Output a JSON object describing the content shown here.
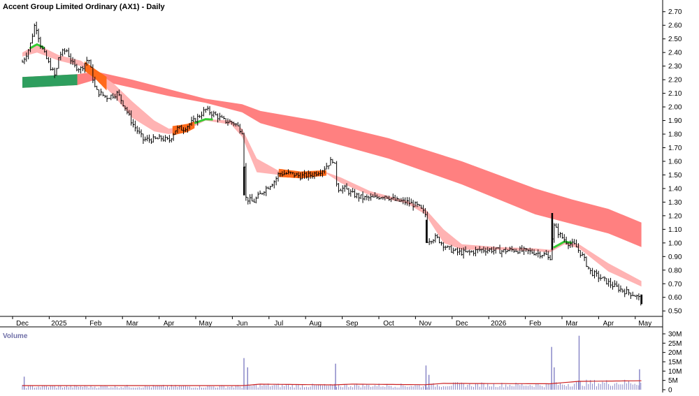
{
  "chart_data": [
    {
      "type": "line",
      "title": "Accent Group Limited Ordinary (AX1) - Daily",
      "x_ticks": [
        "Dec",
        "2025",
        "Feb",
        "Mar",
        "Apr",
        "May",
        "Jun",
        "Jul",
        "Aug",
        "Sep",
        "Oct",
        "Nov",
        "Dec",
        "2026",
        "Feb",
        "Mar",
        "Apr",
        "May"
      ],
      "y_ticks": [
        "2.70",
        "2.60",
        "2.50",
        "2.40",
        "2.30",
        "2.20",
        "2.10",
        "2.00",
        "1.90",
        "1.80",
        "1.70",
        "1.60",
        "1.50",
        "1.40",
        "1.30",
        "1.20",
        "1.10",
        "1.00",
        "0.90",
        "0.80",
        "0.70",
        "0.60",
        "0.50"
      ],
      "ylim": [
        0.46,
        2.75
      ],
      "grid": false,
      "legend": "none",
      "colors": {
        "long_band": "#ff8080",
        "short_band_down": "#ffb3b3",
        "short_band_up_fill": "#ff6a1a",
        "short_band_green": "#33cc33",
        "long_band_green": "#2e9e5e",
        "price_bar": "#000000"
      },
      "price_series": [
        {
          "x": 0.0,
          "close": 2.33
        },
        {
          "x": 0.2,
          "close": 2.44
        },
        {
          "x": 0.35,
          "close": 2.62
        },
        {
          "x": 0.5,
          "close": 2.45
        },
        {
          "x": 0.7,
          "close": 2.33
        },
        {
          "x": 0.9,
          "close": 2.22
        },
        {
          "x": 1.0,
          "close": 2.38
        },
        {
          "x": 1.2,
          "close": 2.42
        },
        {
          "x": 1.4,
          "close": 2.3
        },
        {
          "x": 1.6,
          "close": 2.28
        },
        {
          "x": 1.8,
          "close": 2.36
        },
        {
          "x": 2.0,
          "close": 2.12
        },
        {
          "x": 2.3,
          "close": 2.07
        },
        {
          "x": 2.6,
          "close": 2.1
        },
        {
          "x": 2.8,
          "close": 2.0
        },
        {
          "x": 3.0,
          "close": 1.88
        },
        {
          "x": 3.3,
          "close": 1.76
        },
        {
          "x": 3.6,
          "close": 1.76
        },
        {
          "x": 3.8,
          "close": 1.77
        },
        {
          "x": 4.0,
          "close": 1.75
        },
        {
          "x": 4.2,
          "close": 1.84
        },
        {
          "x": 4.4,
          "close": 1.84
        },
        {
          "x": 4.7,
          "close": 1.9
        },
        {
          "x": 5.0,
          "close": 1.98
        },
        {
          "x": 5.2,
          "close": 1.95
        },
        {
          "x": 5.5,
          "close": 1.9
        },
        {
          "x": 5.8,
          "close": 1.88
        },
        {
          "x": 6.0,
          "close": 1.82
        },
        {
          "x": 6.1,
          "close": 1.33
        },
        {
          "x": 6.3,
          "close": 1.3
        },
        {
          "x": 6.6,
          "close": 1.39
        },
        {
          "x": 6.9,
          "close": 1.46
        },
        {
          "x": 7.0,
          "close": 1.51
        },
        {
          "x": 7.3,
          "close": 1.51
        },
        {
          "x": 7.6,
          "close": 1.49
        },
        {
          "x": 7.9,
          "close": 1.5
        },
        {
          "x": 8.2,
          "close": 1.54
        },
        {
          "x": 8.5,
          "close": 1.62
        },
        {
          "x": 8.6,
          "close": 1.4
        },
        {
          "x": 8.8,
          "close": 1.4
        },
        {
          "x": 9.0,
          "close": 1.36
        },
        {
          "x": 9.3,
          "close": 1.33
        },
        {
          "x": 9.6,
          "close": 1.33
        },
        {
          "x": 9.9,
          "close": 1.35
        },
        {
          "x": 10.2,
          "close": 1.31
        },
        {
          "x": 10.5,
          "close": 1.3
        },
        {
          "x": 10.8,
          "close": 1.27
        },
        {
          "x": 11.0,
          "close": 1.21
        },
        {
          "x": 11.05,
          "close": 1.02
        },
        {
          "x": 11.3,
          "close": 1.04
        },
        {
          "x": 11.6,
          "close": 0.96
        },
        {
          "x": 11.9,
          "close": 0.93
        },
        {
          "x": 12.2,
          "close": 0.93
        },
        {
          "x": 12.5,
          "close": 0.95
        },
        {
          "x": 12.8,
          "close": 0.95
        },
        {
          "x": 13.1,
          "close": 0.94
        },
        {
          "x": 13.4,
          "close": 0.95
        },
        {
          "x": 13.7,
          "close": 0.94
        },
        {
          "x": 14.0,
          "close": 0.93
        },
        {
          "x": 14.3,
          "close": 0.91
        },
        {
          "x": 14.4,
          "close": 0.87
        },
        {
          "x": 14.5,
          "close": 1.13
        },
        {
          "x": 14.7,
          "close": 1.05
        },
        {
          "x": 14.9,
          "close": 1.0
        },
        {
          "x": 15.1,
          "close": 0.98
        },
        {
          "x": 15.3,
          "close": 0.9
        },
        {
          "x": 15.5,
          "close": 0.79
        },
        {
          "x": 15.8,
          "close": 0.74
        },
        {
          "x": 16.1,
          "close": 0.69
        },
        {
          "x": 16.4,
          "close": 0.65
        },
        {
          "x": 16.7,
          "close": 0.62
        },
        {
          "x": 16.9,
          "close": 0.58
        }
      ],
      "long_band": [
        {
          "x": 0.0,
          "upper": 2.22,
          "lower": 2.14
        },
        {
          "x": 1.5,
          "upper": 2.24,
          "lower": 2.16
        },
        {
          "x": 2.0,
          "upper": 2.26,
          "lower": 2.2
        },
        {
          "x": 3.0,
          "upper": 2.2,
          "lower": 2.14
        },
        {
          "x": 4.0,
          "upper": 2.13,
          "lower": 2.08
        },
        {
          "x": 5.0,
          "upper": 2.06,
          "lower": 2.03
        },
        {
          "x": 6.0,
          "upper": 2.02,
          "lower": 1.96
        },
        {
          "x": 6.5,
          "upper": 1.97,
          "lower": 1.88
        },
        {
          "x": 8.0,
          "upper": 1.9,
          "lower": 1.77
        },
        {
          "x": 10.0,
          "upper": 1.77,
          "lower": 1.62
        },
        {
          "x": 12.0,
          "upper": 1.6,
          "lower": 1.43
        },
        {
          "x": 14.0,
          "upper": 1.4,
          "lower": 1.21
        },
        {
          "x": 15.0,
          "upper": 1.32,
          "lower": 1.14
        },
        {
          "x": 16.0,
          "upper": 1.25,
          "lower": 1.07
        },
        {
          "x": 16.9,
          "upper": 1.15,
          "lower": 0.97
        }
      ],
      "short_band": [
        {
          "x": 0.0,
          "upper": 2.4,
          "lower": 2.37
        },
        {
          "x": 0.4,
          "upper": 2.46,
          "lower": 2.4
        },
        {
          "x": 1.0,
          "upper": 2.38,
          "lower": 2.34
        },
        {
          "x": 1.6,
          "upper": 2.34,
          "lower": 2.3
        },
        {
          "x": 2.0,
          "upper": 2.26,
          "lower": 2.22
        },
        {
          "x": 2.5,
          "upper": 2.17,
          "lower": 2.08
        },
        {
          "x": 3.0,
          "upper": 2.04,
          "lower": 1.92
        },
        {
          "x": 3.6,
          "upper": 1.9,
          "lower": 1.82
        },
        {
          "x": 4.0,
          "upper": 1.84,
          "lower": 1.8
        },
        {
          "x": 4.5,
          "upper": 1.86,
          "lower": 1.83
        },
        {
          "x": 5.0,
          "upper": 1.91,
          "lower": 1.9
        },
        {
          "x": 5.7,
          "upper": 1.9,
          "lower": 1.87
        },
        {
          "x": 6.0,
          "upper": 1.84,
          "lower": 1.78
        },
        {
          "x": 6.4,
          "upper": 1.62,
          "lower": 1.52
        },
        {
          "x": 7.0,
          "upper": 1.53,
          "lower": 1.5
        },
        {
          "x": 7.6,
          "upper": 1.51,
          "lower": 1.49
        },
        {
          "x": 8.3,
          "upper": 1.52,
          "lower": 1.51
        },
        {
          "x": 8.7,
          "upper": 1.48,
          "lower": 1.44
        },
        {
          "x": 9.5,
          "upper": 1.38,
          "lower": 1.35
        },
        {
          "x": 10.5,
          "upper": 1.31,
          "lower": 1.29
        },
        {
          "x": 11.0,
          "upper": 1.25,
          "lower": 1.21
        },
        {
          "x": 11.5,
          "upper": 1.1,
          "lower": 1.0
        },
        {
          "x": 12.0,
          "upper": 0.99,
          "lower": 0.95
        },
        {
          "x": 13.0,
          "upper": 0.97,
          "lower": 0.95
        },
        {
          "x": 14.0,
          "upper": 0.96,
          "lower": 0.94
        },
        {
          "x": 14.4,
          "upper": 0.95,
          "lower": 0.93
        },
        {
          "x": 14.8,
          "upper": 1.01,
          "lower": 0.99
        },
        {
          "x": 15.2,
          "upper": 0.99,
          "lower": 0.96
        },
        {
          "x": 16.0,
          "upper": 0.85,
          "lower": 0.79
        },
        {
          "x": 16.9,
          "upper": 0.72,
          "lower": 0.68
        }
      ]
    },
    {
      "type": "bar",
      "title": "Volume",
      "y_ticks": [
        "30M",
        "25M",
        "20M",
        "15M",
        "10M",
        "5M",
        "0"
      ],
      "ylim": [
        0,
        30
      ],
      "colors": {
        "bars": "#8a88c8",
        "average_line": "#cc2222"
      },
      "spikes": [
        {
          "x": 0.05,
          "value": 7
        },
        {
          "x": 6.05,
          "value": 17
        },
        {
          "x": 6.15,
          "value": 12
        },
        {
          "x": 8.55,
          "value": 14
        },
        {
          "x": 11.02,
          "value": 13
        },
        {
          "x": 11.1,
          "value": 8
        },
        {
          "x": 14.45,
          "value": 23
        },
        {
          "x": 14.52,
          "value": 12
        },
        {
          "x": 15.2,
          "value": 29
        },
        {
          "x": 16.85,
          "value": 11
        }
      ],
      "average_line": [
        {
          "x": 0,
          "value": 2.2
        },
        {
          "x": 6.0,
          "value": 2.2
        },
        {
          "x": 6.5,
          "value": 3.0
        },
        {
          "x": 8.5,
          "value": 2.6
        },
        {
          "x": 9.0,
          "value": 3.0
        },
        {
          "x": 11.0,
          "value": 2.7
        },
        {
          "x": 11.5,
          "value": 3.4
        },
        {
          "x": 14.4,
          "value": 3.2
        },
        {
          "x": 15.2,
          "value": 4.5
        },
        {
          "x": 16.9,
          "value": 4.8
        }
      ]
    }
  ]
}
